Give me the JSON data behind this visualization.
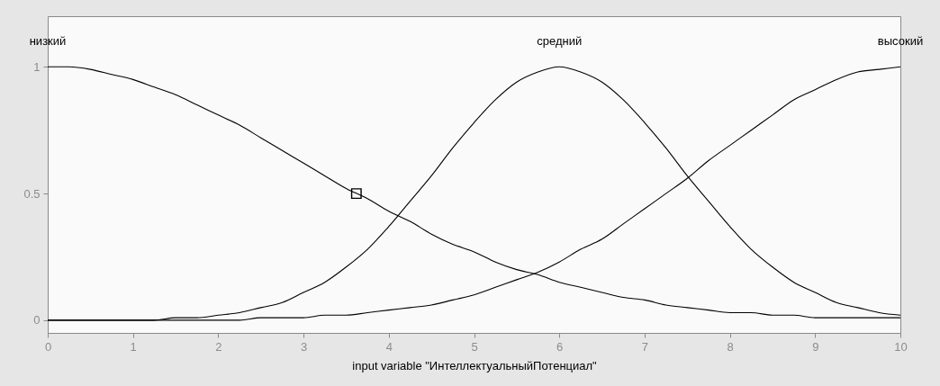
{
  "chart_data": {
    "type": "line",
    "xlabel": "input variable \"ИнтеллектуальныйПотенциал\"",
    "x": [
      0,
      0.25,
      0.5,
      0.75,
      1,
      1.25,
      1.5,
      1.75,
      2,
      2.25,
      2.5,
      2.75,
      3,
      3.25,
      3.5,
      3.75,
      4,
      4.25,
      4.5,
      4.75,
      5,
      5.25,
      5.5,
      5.75,
      6,
      6.25,
      6.5,
      6.75,
      7,
      7.25,
      7.5,
      7.75,
      8,
      8.25,
      8.5,
      8.75,
      9,
      9.25,
      9.5,
      9.75,
      10
    ],
    "series": [
      {
        "name": "низкий",
        "color": "#000000",
        "values": [
          1.0,
          1.0,
          0.99,
          0.97,
          0.95,
          0.92,
          0.89,
          0.85,
          0.81,
          0.77,
          0.72,
          0.67,
          0.62,
          0.57,
          0.52,
          0.48,
          0.43,
          0.39,
          0.34,
          0.3,
          0.27,
          0.23,
          0.2,
          0.18,
          0.15,
          0.13,
          0.11,
          0.09,
          0.08,
          0.06,
          0.05,
          0.04,
          0.03,
          0.03,
          0.02,
          0.02,
          0.01,
          0.01,
          0.01,
          0.01,
          0.01
        ]
      },
      {
        "name": "средний",
        "color": "#000000",
        "values": [
          0,
          0,
          0,
          0,
          0,
          0,
          0.01,
          0.01,
          0.02,
          0.03,
          0.05,
          0.07,
          0.11,
          0.15,
          0.21,
          0.28,
          0.37,
          0.47,
          0.57,
          0.68,
          0.78,
          0.87,
          0.94,
          0.98,
          1.0,
          0.98,
          0.94,
          0.87,
          0.78,
          0.68,
          0.57,
          0.47,
          0.37,
          0.28,
          0.21,
          0.15,
          0.11,
          0.07,
          0.05,
          0.03,
          0.02
        ]
      },
      {
        "name": "высокий",
        "color": "#000000",
        "values": [
          0,
          0,
          0,
          0,
          0,
          0,
          0,
          0,
          0,
          0,
          0.01,
          0.01,
          0.01,
          0.02,
          0.02,
          0.03,
          0.04,
          0.05,
          0.06,
          0.08,
          0.1,
          0.13,
          0.16,
          0.19,
          0.23,
          0.28,
          0.32,
          0.38,
          0.44,
          0.5,
          0.56,
          0.63,
          0.69,
          0.75,
          0.81,
          0.87,
          0.91,
          0.95,
          0.98,
          0.99,
          1.0
        ]
      },
      {
        "type": "scatter",
        "x": [
          3.62
        ],
        "values": [
          0.5
        ],
        "color": "#000000",
        "marker": "square"
      }
    ],
    "xlim": [
      0,
      10
    ],
    "ylim": [
      -0.05,
      1.2
    ],
    "xticks": [
      0,
      1,
      2,
      3,
      4,
      5,
      6,
      7,
      8,
      9,
      10
    ],
    "yticks": [
      0,
      0.5,
      1
    ],
    "grid": false,
    "legend": false,
    "marker": "none",
    "line_style": "solid"
  }
}
